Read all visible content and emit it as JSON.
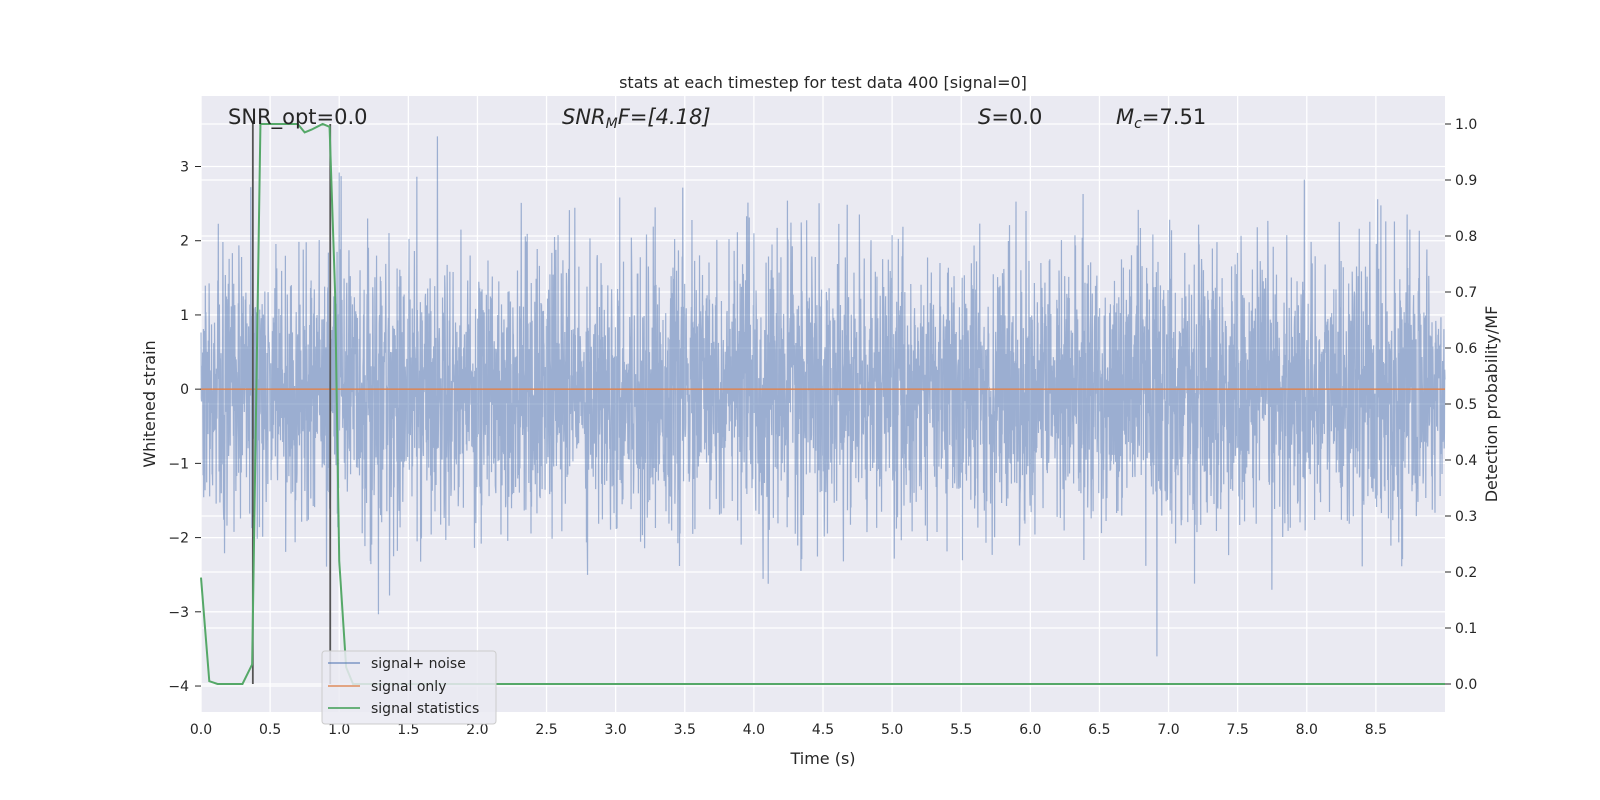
{
  "chart_data": {
    "type": "line",
    "title": "stats at each timestep for test data 400 [signal=0]",
    "xlabel": "Time (s)",
    "ylabel_left": "Whitened strain",
    "ylabel_right": "Detection probability/MF",
    "xlim": [
      0.0,
      9.0
    ],
    "ylim_left": [
      -4.35,
      3.95
    ],
    "ylim_right": [
      -0.05,
      1.05
    ],
    "x_ticks": [
      "0.0",
      "0.5",
      "1.0",
      "1.5",
      "2.0",
      "2.5",
      "3.0",
      "3.5",
      "4.0",
      "4.5",
      "5.0",
      "5.5",
      "6.0",
      "6.5",
      "7.0",
      "7.5",
      "8.0",
      "8.5"
    ],
    "y_left_ticks": [
      "-4",
      "-3",
      "-2",
      "-1",
      "0",
      "1",
      "2",
      "3"
    ],
    "y_right_ticks": [
      "0.0",
      "0.1",
      "0.2",
      "0.3",
      "0.4",
      "0.5",
      "0.6",
      "0.7",
      "0.8",
      "0.9",
      "1.0"
    ],
    "grid": true,
    "legend_placement": "lower-left",
    "annotations": {
      "snr_opt": "SNR_opt=0.0",
      "snr_mf_main": "SNR",
      "snr_mf_sub": "M",
      "snr_mf_rest": "F=[4.18]",
      "s_main": "S",
      "s_rest": "=0.0",
      "mc_main": "M",
      "mc_sub": "c",
      "mc_rest": "=7.51"
    },
    "vertical_markers_x": [
      0.375,
      0.935
    ],
    "series": [
      {
        "name": "signal+ noise",
        "color": "#4c72b0",
        "axis": "left",
        "description_values": {
          "typical_range": [
            -1.7,
            1.7
          ],
          "max": 3.55,
          "min": -3.6
        }
      },
      {
        "name": "signal only",
        "color": "#dd8452",
        "axis": "left",
        "x": [
          0.0,
          9.0
        ],
        "y": [
          0.0,
          0.0
        ]
      },
      {
        "name": "signal statistics",
        "color": "#55a868",
        "axis": "right",
        "x": [
          0.0,
          0.06,
          0.12,
          0.3,
          0.37,
          0.43,
          0.5,
          0.6,
          0.7,
          0.75,
          0.8,
          0.88,
          0.93,
          0.97,
          1.0,
          1.05,
          1.1,
          9.0
        ],
        "y": [
          0.19,
          0.005,
          0.0,
          0.0,
          0.035,
          1.0,
          1.0,
          1.0,
          1.0,
          0.985,
          0.99,
          1.0,
          0.995,
          0.7,
          0.22,
          0.03,
          0.0,
          0.0
        ]
      }
    ]
  }
}
